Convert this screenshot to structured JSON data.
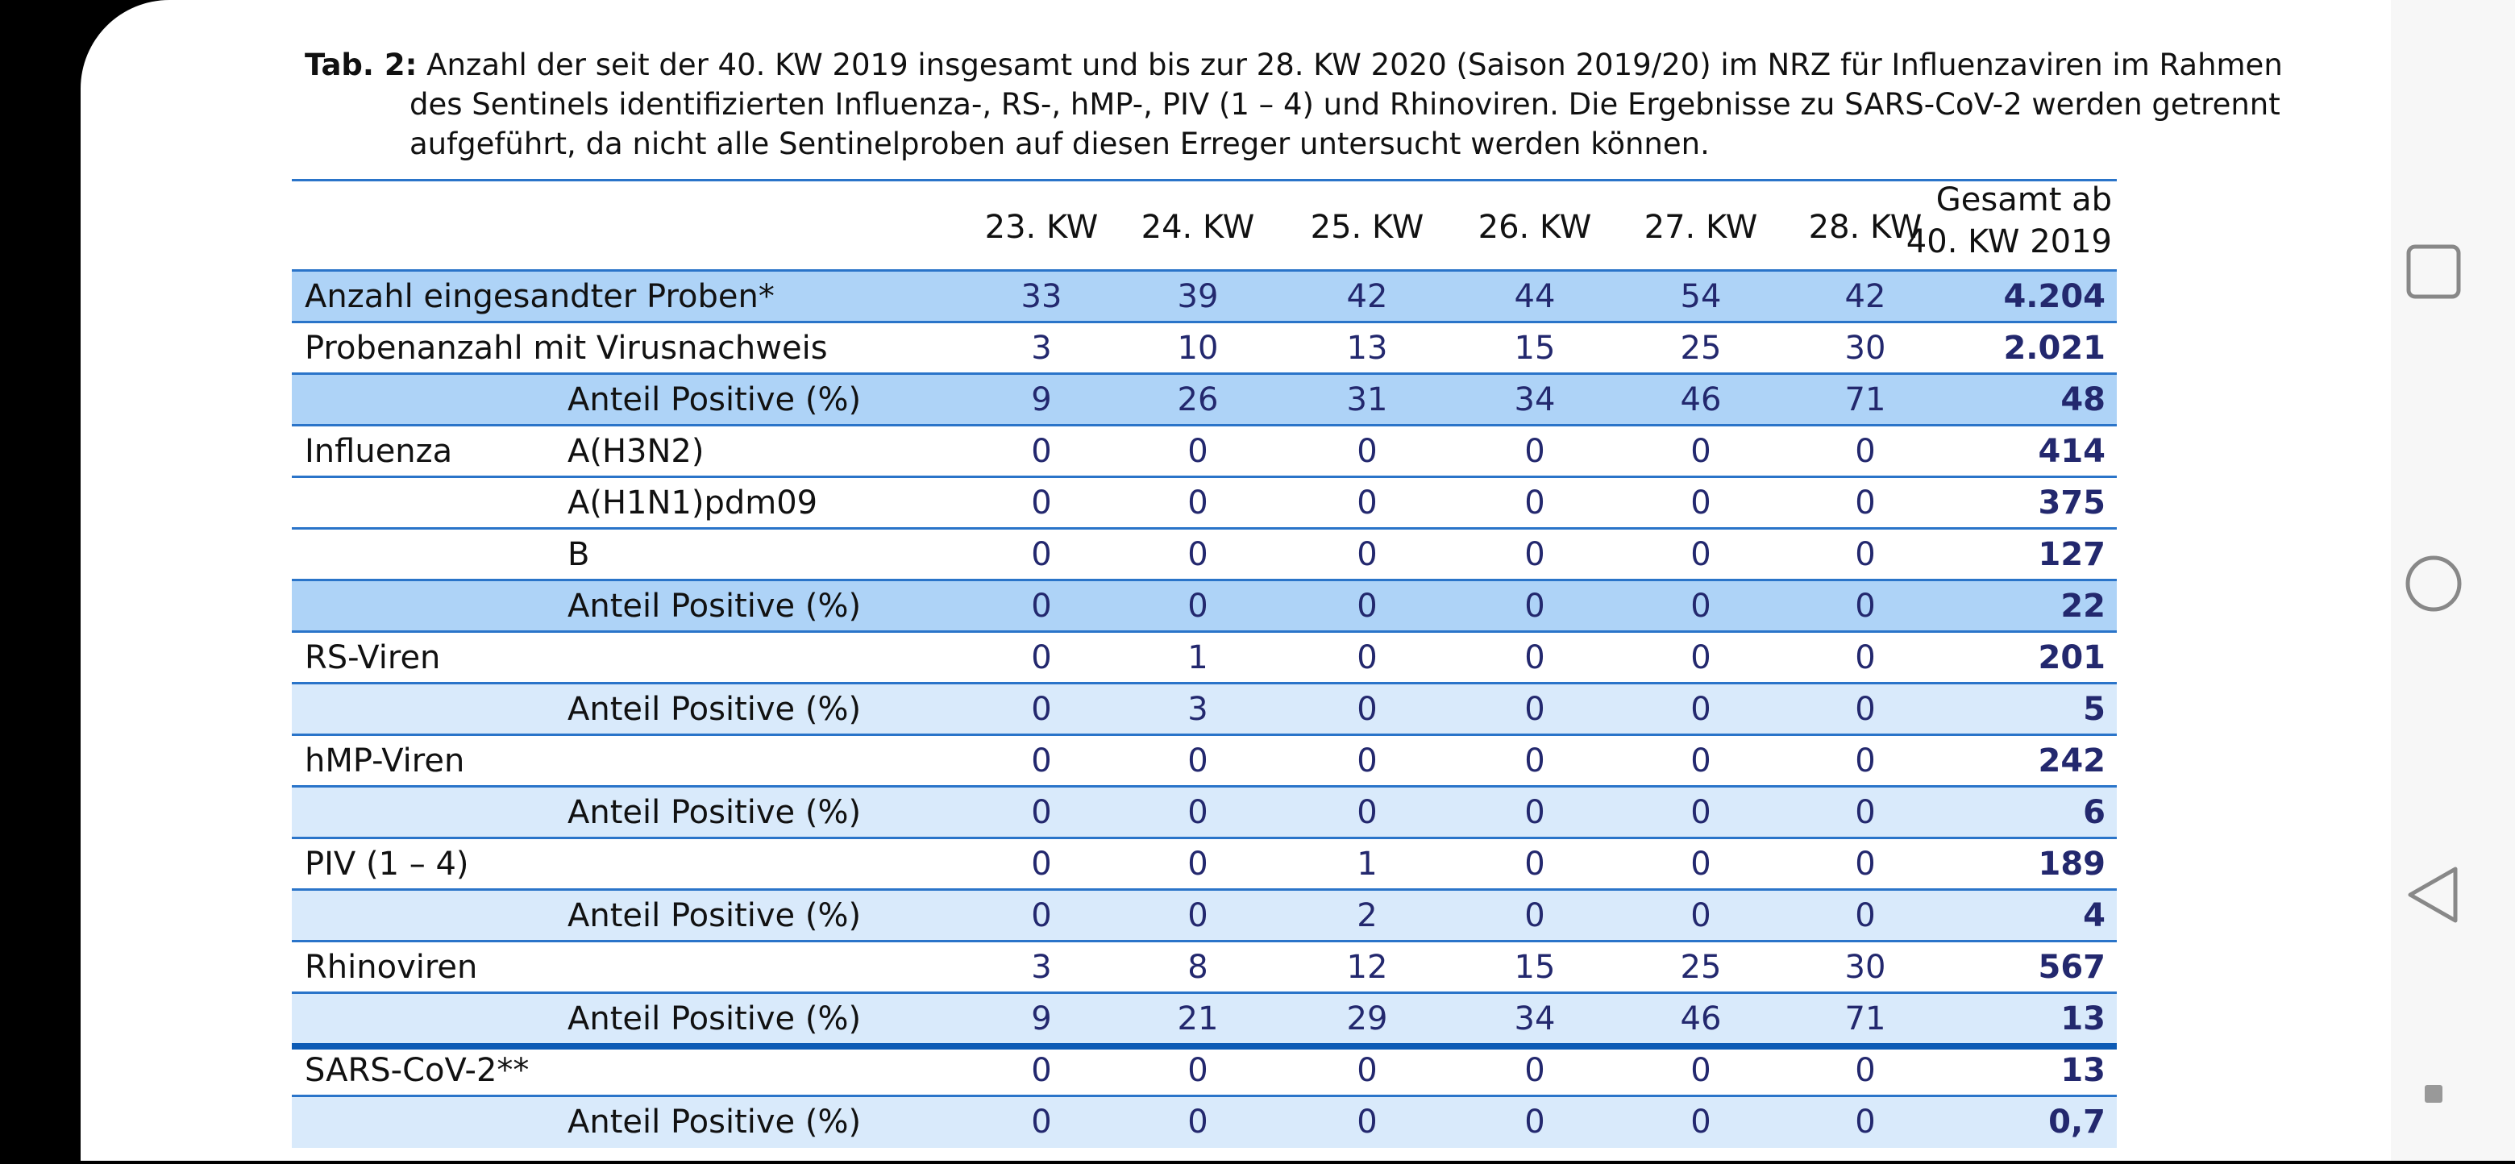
{
  "caption": {
    "label": "Tab. 2:",
    "text": "Anzahl der seit der 40. KW 2019 insgesamt und bis zur 28. KW 2020 (Saison 2019/20) im NRZ für Influenzaviren im Rahmen des Sentinels identifizierten Influenza-, RS-, hMP-, PIV (1 – 4) und Rhinoviren. Die Ergebnisse zu SARS-CoV-2 werden getrennt aufgeführt, da nicht alle Sentinelproben auf diesen Erreger untersucht werden können."
  },
  "table": {
    "columns": [
      "23. KW",
      "24. KW",
      "25. KW",
      "26. KW",
      "27. KW",
      "28. KW",
      "Gesamt ab 40. KW 2019"
    ],
    "rows": [
      {
        "label": "Anzahl eingesandter Proben*",
        "values": [
          "33",
          "39",
          "42",
          "44",
          "54",
          "42",
          "4.204"
        ]
      },
      {
        "label": "Probenanzahl mit Virusnachweis",
        "values": [
          "3",
          "10",
          "13",
          "15",
          "25",
          "30",
          "2.021"
        ]
      },
      {
        "sublabel": "Anteil Positive (%)",
        "values": [
          "9",
          "26",
          "31",
          "34",
          "46",
          "71",
          "48"
        ]
      },
      {
        "label": "Influenza",
        "sublabel": "A(H3N2)",
        "values": [
          "0",
          "0",
          "0",
          "0",
          "0",
          "0",
          "414"
        ]
      },
      {
        "sublabel": "A(H1N1)pdm09",
        "values": [
          "0",
          "0",
          "0",
          "0",
          "0",
          "0",
          "375"
        ]
      },
      {
        "sublabel": "B",
        "values": [
          "0",
          "0",
          "0",
          "0",
          "0",
          "0",
          "127"
        ]
      },
      {
        "sublabel": "Anteil Positive (%)",
        "values": [
          "0",
          "0",
          "0",
          "0",
          "0",
          "0",
          "22"
        ]
      },
      {
        "label": "RS-Viren",
        "values": [
          "0",
          "1",
          "0",
          "0",
          "0",
          "0",
          "201"
        ]
      },
      {
        "sublabel": "Anteil Positive (%)",
        "values": [
          "0",
          "3",
          "0",
          "0",
          "0",
          "0",
          "5"
        ]
      },
      {
        "label": "hMP-Viren",
        "values": [
          "0",
          "0",
          "0",
          "0",
          "0",
          "0",
          "242"
        ]
      },
      {
        "sublabel": "Anteil Positive (%)",
        "values": [
          "0",
          "0",
          "0",
          "0",
          "0",
          "0",
          "6"
        ]
      },
      {
        "label": "PIV (1 – 4)",
        "values": [
          "0",
          "0",
          "1",
          "0",
          "0",
          "0",
          "189"
        ]
      },
      {
        "sublabel": "Anteil Positive (%)",
        "values": [
          "0",
          "0",
          "2",
          "0",
          "0",
          "0",
          "4"
        ]
      },
      {
        "label": "Rhinoviren",
        "values": [
          "3",
          "8",
          "12",
          "15",
          "25",
          "30",
          "567"
        ]
      },
      {
        "sublabel": "Anteil Positive (%)",
        "values": [
          "9",
          "21",
          "29",
          "34",
          "46",
          "71",
          "13"
        ]
      },
      {
        "label": "SARS-CoV-2**",
        "values": [
          "0",
          "0",
          "0",
          "0",
          "0",
          "0",
          "13"
        ]
      },
      {
        "sublabel": "Anteil Positive (%)",
        "values": [
          "0",
          "0",
          "0",
          "0",
          "0",
          "0",
          "0,7"
        ]
      }
    ]
  }
}
